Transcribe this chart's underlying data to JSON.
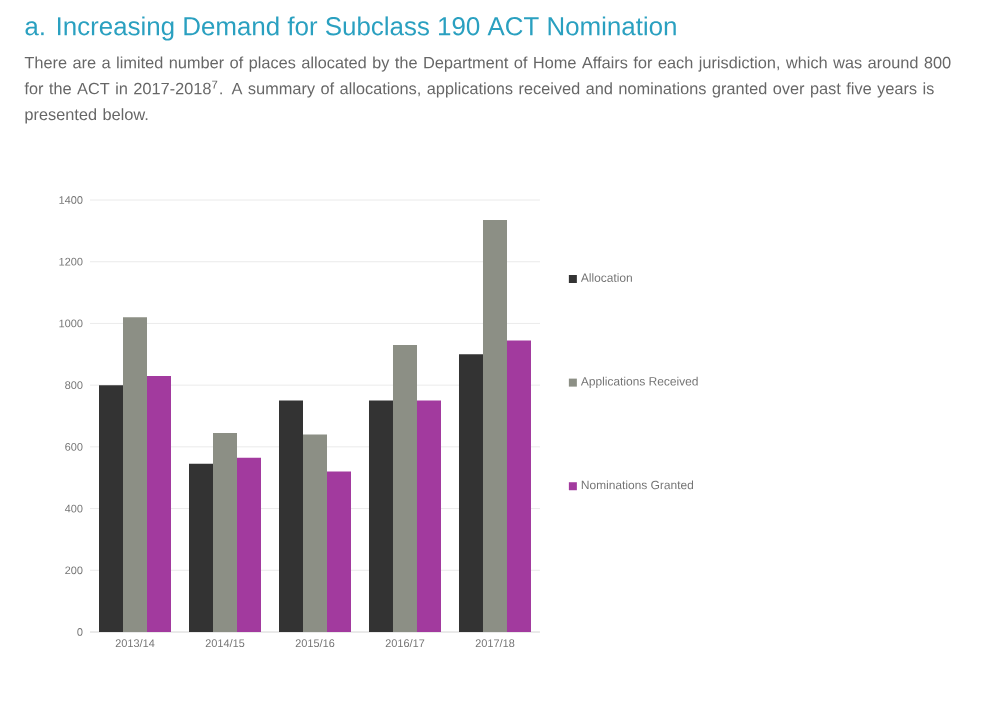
{
  "chart_data": {
    "type": "bar",
    "title": "a. Increasing Demand for Subclass 190 ACT Nomination",
    "subtitle": "There are a limited number of places allocated by the Department of Home Affairs for each jurisdiction, which was around 800 for the ACT in 2017-2018$^{7}$. A summary of allocations, applications received and nominations granted over past five years is presented below.",
    "categories": [
      "2013/14",
      "2014/15",
      "2015/16",
      "2016/17",
      "2017/18"
    ],
    "series": [
      {
        "name": "Allocation",
        "color": "#333333",
        "values": [
          800,
          545,
          750,
          750,
          900
        ]
      },
      {
        "name": "Applications Received",
        "color": "#8c8f85",
        "values": [
          1020,
          645,
          640,
          930,
          1335
        ]
      },
      {
        "name": "Nominations Granted",
        "color": "#a23a9e",
        "values": [
          830,
          565,
          520,
          750,
          945
        ]
      }
    ],
    "ylim": [
      0,
      1400
    ],
    "yticks": [
      0,
      200,
      400,
      600,
      800,
      1000,
      1200,
      1400
    ],
    "grid": "y",
    "legend": "right"
  }
}
